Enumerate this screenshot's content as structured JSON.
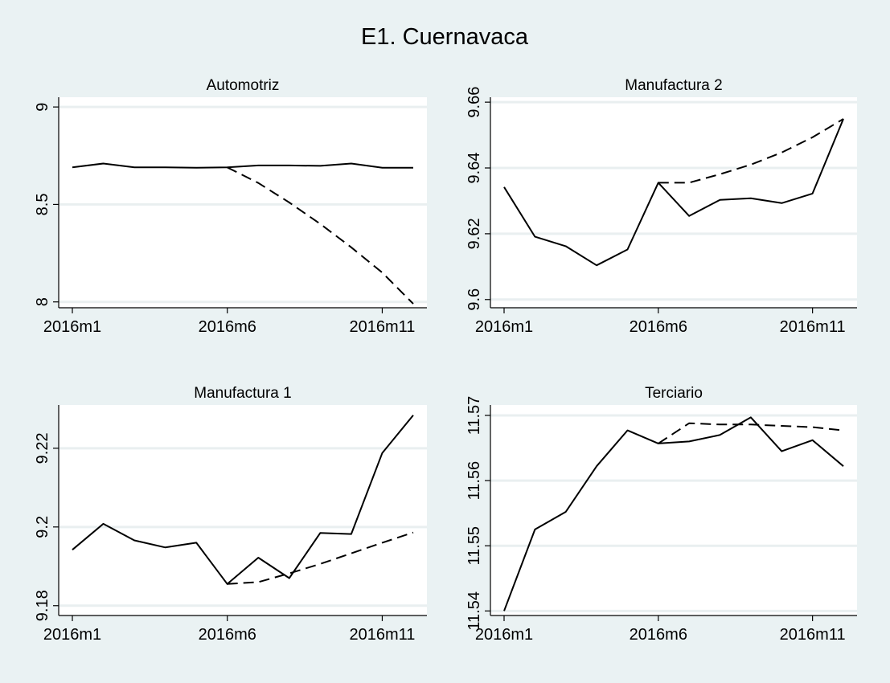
{
  "title": "E1. Cuernavaca",
  "chart_data": [
    {
      "type": "line",
      "title": "Automotriz",
      "x": [
        "2016m1",
        "2016m2",
        "2016m3",
        "2016m4",
        "2016m5",
        "2016m6",
        "2016m7",
        "2016m8",
        "2016m9",
        "2016m10",
        "2016m11",
        "2016m12"
      ],
      "xticks": [
        "2016m1",
        "2016m6",
        "2016m11"
      ],
      "ylim": [
        7.97,
        9.05
      ],
      "yticks": [
        "8",
        "8.5",
        "9"
      ],
      "series": [
        {
          "style": "solid",
          "values": [
            8.69,
            8.71,
            8.69,
            8.69,
            8.688,
            8.69,
            8.7,
            8.7,
            8.698,
            8.71,
            8.688,
            8.688
          ]
        },
        {
          "style": "dashed",
          "values": [
            null,
            null,
            null,
            null,
            null,
            8.69,
            8.61,
            8.51,
            8.4,
            8.28,
            8.15,
            7.99
          ]
        }
      ]
    },
    {
      "type": "line",
      "title": "Manufactura 2",
      "x": [
        "2016m1",
        "2016m2",
        "2016m3",
        "2016m4",
        "2016m5",
        "2016m6",
        "2016m7",
        "2016m8",
        "2016m9",
        "2016m10",
        "2016m11",
        "2016m12"
      ],
      "xticks": [
        "2016m1",
        "2016m6",
        "2016m11"
      ],
      "ylim": [
        9.5975,
        9.6615
      ],
      "yticks": [
        "9.6",
        "9.62",
        "9.64",
        "9.66"
      ],
      "series": [
        {
          "style": "solid",
          "values": [
            9.6342,
            9.6191,
            9.6162,
            9.6104,
            9.6152,
            9.6355,
            9.6254,
            9.6303,
            9.6308,
            9.6293,
            9.6322,
            9.6549
          ]
        },
        {
          "style": "dashed",
          "values": [
            null,
            null,
            null,
            null,
            null,
            9.6355,
            9.6355,
            9.6381,
            9.641,
            9.6447,
            9.6493,
            9.6549
          ]
        }
      ]
    },
    {
      "type": "line",
      "title": "Manufactura 1",
      "x": [
        "2016m1",
        "2016m2",
        "2016m3",
        "2016m4",
        "2016m5",
        "2016m6",
        "2016m7",
        "2016m8",
        "2016m9",
        "2016m10",
        "2016m11",
        "2016m12"
      ],
      "xticks": [
        "2016m1",
        "2016m6",
        "2016m11"
      ],
      "ylim": [
        9.1775,
        9.231
      ],
      "yticks": [
        "9.18",
        "9.2",
        "9.22"
      ],
      "series": [
        {
          "style": "solid",
          "values": [
            9.1942,
            9.2008,
            9.1966,
            9.1948,
            9.196,
            9.1855,
            9.1922,
            9.187,
            9.1985,
            9.1982,
            9.2188,
            9.2284
          ]
        },
        {
          "style": "dashed",
          "values": [
            null,
            null,
            null,
            null,
            null,
            9.1855,
            9.186,
            9.1882,
            9.1906,
            9.1933,
            9.196,
            9.1986
          ]
        }
      ]
    },
    {
      "type": "line",
      "title": "Terciario",
      "x": [
        "2016m1",
        "2016m2",
        "2016m3",
        "2016m4",
        "2016m5",
        "2016m6",
        "2016m7",
        "2016m8",
        "2016m9",
        "2016m10",
        "2016m11",
        "2016m12"
      ],
      "xticks": [
        "2016m1",
        "2016m6",
        "2016m11"
      ],
      "ylim": [
        11.5393,
        11.5716
      ],
      "yticks": [
        "11.54",
        "11.55",
        "11.56",
        "11.57"
      ],
      "series": [
        {
          "style": "solid",
          "values": [
            11.54,
            11.5525,
            11.5552,
            11.5622,
            11.5677,
            11.5657,
            11.566,
            11.567,
            11.5697,
            11.5645,
            11.5662,
            11.5622
          ]
        },
        {
          "style": "dashed",
          "values": [
            null,
            null,
            null,
            null,
            null,
            11.5657,
            11.5688,
            11.5686,
            11.5686,
            11.5684,
            11.5682,
            11.5677
          ]
        }
      ]
    }
  ]
}
